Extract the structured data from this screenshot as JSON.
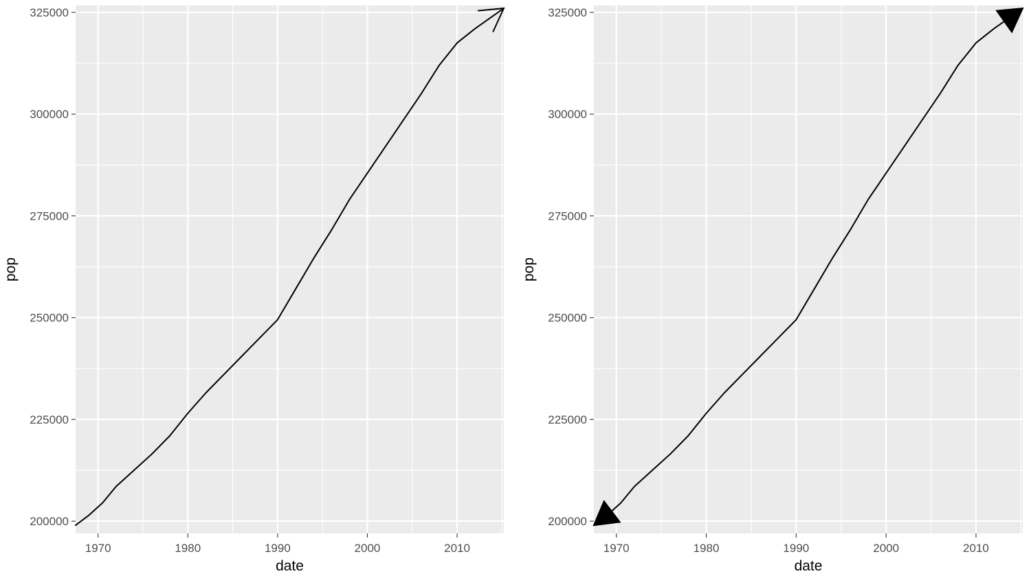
{
  "chart_data": [
    {
      "type": "line",
      "xlabel": "date",
      "ylabel": "pop",
      "xlim": [
        1967.5,
        2015.2
      ],
      "ylim": [
        198000,
        325000
      ],
      "x_ticks": [
        1970,
        1980,
        1990,
        2000,
        2010
      ],
      "y_ticks": [
        200000,
        225000,
        250000,
        275000,
        300000,
        325000
      ],
      "grid": true,
      "arrow": {
        "ends": "last",
        "type": "open"
      },
      "series": [
        {
          "x": [
            1967.5,
            1969,
            1970.5,
            1972,
            1974,
            1976,
            1978,
            1980,
            1982,
            1984,
            1986,
            1988,
            1990,
            1992,
            1994,
            1996,
            1998,
            2000,
            2002,
            2004,
            2006,
            2008,
            2010,
            2012,
            2015.2
          ],
          "y": [
            199000,
            201500,
            204500,
            208500,
            212500,
            216500,
            221000,
            226500,
            231500,
            236000,
            240500,
            245000,
            249500,
            257000,
            264500,
            271500,
            279000,
            285500,
            292000,
            298500,
            305000,
            312000,
            317500,
            321000,
            326000
          ]
        }
      ]
    },
    {
      "type": "line",
      "xlabel": "date",
      "ylabel": "pop",
      "xlim": [
        1967.5,
        2015.2
      ],
      "ylim": [
        198000,
        325000
      ],
      "x_ticks": [
        1970,
        1980,
        1990,
        2000,
        2010
      ],
      "y_ticks": [
        200000,
        225000,
        250000,
        275000,
        300000,
        325000
      ],
      "grid": true,
      "arrow": {
        "ends": "both",
        "type": "closed"
      },
      "series": [
        {
          "x": [
            1967.5,
            1969,
            1970.5,
            1972,
            1974,
            1976,
            1978,
            1980,
            1982,
            1984,
            1986,
            1988,
            1990,
            1992,
            1994,
            1996,
            1998,
            2000,
            2002,
            2004,
            2006,
            2008,
            2010,
            2012,
            2015.2
          ],
          "y": [
            199000,
            201500,
            204500,
            208500,
            212500,
            216500,
            221000,
            226500,
            231500,
            236000,
            240500,
            245000,
            249500,
            257000,
            264500,
            271500,
            279000,
            285500,
            292000,
            298500,
            305000,
            312000,
            317500,
            321000,
            326000
          ]
        }
      ]
    }
  ]
}
